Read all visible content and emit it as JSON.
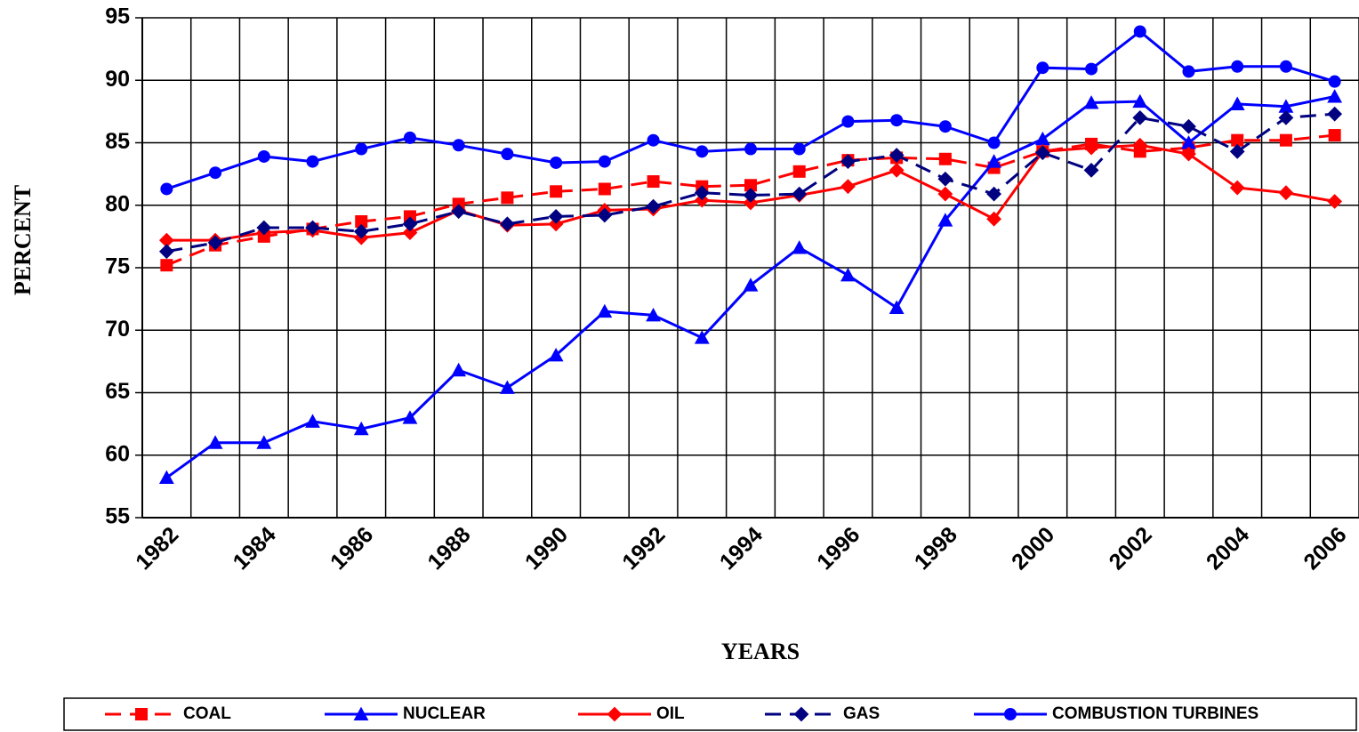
{
  "chart_data": {
    "type": "line",
    "x_label": "YEARS",
    "y_label": "PERCENT",
    "categories": [
      "1982",
      null,
      "1984",
      null,
      "1986",
      null,
      "1988",
      null,
      "1990",
      null,
      "1992",
      null,
      "1994",
      null,
      "1996",
      null,
      "1998",
      null,
      "2000",
      null,
      "2002",
      null,
      "2004",
      null,
      "2006"
    ],
    "ylim": [
      55,
      95
    ],
    "yticks": [
      55,
      60,
      65,
      70,
      75,
      80,
      85,
      90,
      95
    ],
    "grid": true,
    "legend": "bottom",
    "series": [
      {
        "name": "COAL",
        "color": "#ff0000",
        "marker": "square",
        "dashed": true,
        "values": [
          75.2,
          76.8,
          77.5,
          78.1,
          78.7,
          79.1,
          80.1,
          80.6,
          81.1,
          81.3,
          81.9,
          81.5,
          81.6,
          82.7,
          83.6,
          83.8,
          83.7,
          83.0,
          84.3,
          84.9,
          84.3,
          84.6,
          85.2,
          85.2,
          85.6
        ]
      },
      {
        "name": "NUCLEAR",
        "color": "#0000ff",
        "marker": "triangle",
        "dashed": false,
        "values": [
          58.2,
          61.0,
          61.0,
          62.7,
          62.1,
          63.0,
          66.8,
          65.4,
          68.0,
          71.5,
          71.2,
          69.4,
          73.6,
          76.6,
          74.4,
          71.8,
          78.8,
          83.5,
          85.3,
          88.2,
          88.3,
          85.0,
          88.1,
          87.9,
          88.7
        ]
      },
      {
        "name": "OIL",
        "color": "#ff0000",
        "marker": "diamond",
        "dashed": false,
        "values": [
          77.2,
          77.2,
          77.8,
          78.0,
          77.4,
          77.8,
          79.6,
          78.4,
          78.5,
          79.6,
          79.7,
          80.4,
          80.2,
          80.8,
          81.5,
          82.8,
          80.9,
          78.9,
          84.3,
          84.6,
          84.8,
          84.1,
          81.4,
          81.0,
          80.3
        ]
      },
      {
        "name": "GAS",
        "color": "#000080",
        "marker": "diamond",
        "dashed": true,
        "values": [
          76.3,
          77.0,
          78.2,
          78.2,
          77.9,
          78.5,
          79.5,
          78.5,
          79.1,
          79.2,
          79.9,
          81.0,
          80.8,
          80.9,
          83.5,
          84.0,
          82.1,
          80.9,
          84.2,
          82.8,
          87.0,
          86.3,
          84.3,
          87.0,
          87.3
        ]
      },
      {
        "name": "COMBUSTION TURBINES",
        "color": "#0000ff",
        "marker": "circle",
        "dashed": false,
        "values": [
          81.3,
          82.6,
          83.9,
          83.5,
          84.5,
          85.4,
          84.8,
          84.1,
          83.4,
          83.5,
          85.2,
          84.3,
          84.5,
          84.5,
          86.7,
          86.8,
          86.3,
          85.0,
          91.0,
          90.9,
          93.9,
          90.7,
          91.1,
          91.1,
          89.9
        ]
      }
    ]
  }
}
